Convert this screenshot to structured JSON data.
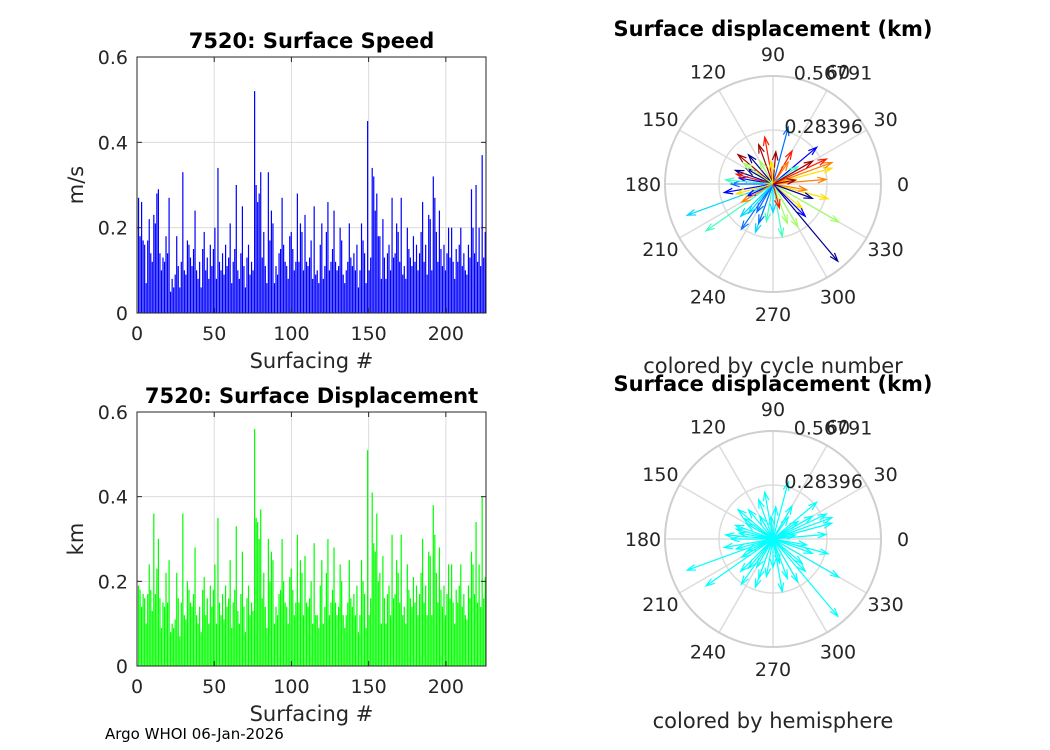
{
  "footer": "Argo WHOI 06-Jan-2026",
  "colors": {
    "speed_bar": "#0000ff",
    "disp_bar": "#00ff00",
    "hemisphere": "#00ffff",
    "grid": "#dcdcdc",
    "axis": "#262626"
  },
  "chart_data": [
    {
      "id": "speed",
      "type": "bar",
      "title": "7520: Surface Speed",
      "xlabel": "Surfacing #",
      "ylabel": "m/s",
      "xlim": [
        0,
        226
      ],
      "ylim": [
        0,
        0.6
      ],
      "xticks": [
        0,
        50,
        100,
        150,
        200
      ],
      "xtick_labels": [
        "0",
        "50",
        "100",
        "150",
        "200"
      ],
      "yticks": [
        0,
        0.2,
        0.4,
        0.6
      ],
      "ytick_labels": [
        "0",
        "0.2",
        "0.4",
        "0.6"
      ],
      "values": [
        0.27,
        0.18,
        0.26,
        0.17,
        0.16,
        0.07,
        0.17,
        0.22,
        0.14,
        0.12,
        0.23,
        0.21,
        0.28,
        0.29,
        0.14,
        0.1,
        0.13,
        0.12,
        0.18,
        0.14,
        0.27,
        0.05,
        0.08,
        0.06,
        0.09,
        0.18,
        0.11,
        0.06,
        0.12,
        0.33,
        0.1,
        0.09,
        0.17,
        0.16,
        0.13,
        0.11,
        0.15,
        0.24,
        0.1,
        0.08,
        0.12,
        0.06,
        0.15,
        0.19,
        0.1,
        0.13,
        0.08,
        0.16,
        0.11,
        0.15,
        0.2,
        0.08,
        0.34,
        0.12,
        0.1,
        0.14,
        0.09,
        0.16,
        0.11,
        0.13,
        0.21,
        0.07,
        0.12,
        0.15,
        0.3,
        0.1,
        0.08,
        0.14,
        0.25,
        0.11,
        0.06,
        0.13,
        0.16,
        0.09,
        0.12,
        0.1,
        0.52,
        0.3,
        0.26,
        0.28,
        0.33,
        0.13,
        0.19,
        0.11,
        0.07,
        0.33,
        0.17,
        0.24,
        0.21,
        0.07,
        0.11,
        0.09,
        0.14,
        0.15,
        0.27,
        0.16,
        0.12,
        0.11,
        0.08,
        0.18,
        0.19,
        0.15,
        0.1,
        0.12,
        0.28,
        0.12,
        0.21,
        0.19,
        0.1,
        0.23,
        0.12,
        0.11,
        0.13,
        0.17,
        0.08,
        0.25,
        0.09,
        0.1,
        0.07,
        0.16,
        0.21,
        0.08,
        0.11,
        0.19,
        0.26,
        0.1,
        0.12,
        0.15,
        0.24,
        0.12,
        0.1,
        0.11,
        0.2,
        0.17,
        0.09,
        0.07,
        0.1,
        0.12,
        0.21,
        0.13,
        0.11,
        0.14,
        0.1,
        0.16,
        0.06,
        0.1,
        0.21,
        0.17,
        0.14,
        0.07,
        0.45,
        0.1,
        0.13,
        0.34,
        0.32,
        0.24,
        0.28,
        0.18,
        0.18,
        0.08,
        0.22,
        0.13,
        0.08,
        0.14,
        0.16,
        0.1,
        0.27,
        0.13,
        0.14,
        0.21,
        0.19,
        0.12,
        0.27,
        0.09,
        0.11,
        0.08,
        0.2,
        0.15,
        0.13,
        0.11,
        0.18,
        0.12,
        0.16,
        0.1,
        0.14,
        0.19,
        0.26,
        0.12,
        0.16,
        0.09,
        0.23,
        0.22,
        0.1,
        0.32,
        0.27,
        0.19,
        0.12,
        0.24,
        0.15,
        0.11,
        0.16,
        0.1,
        0.14,
        0.2,
        0.13,
        0.2,
        0.12,
        0.08,
        0.15,
        0.12,
        0.16,
        0.2,
        0.11,
        0.14,
        0.1,
        0.09,
        0.16,
        0.13,
        0.29,
        0.2,
        0.14,
        0.3,
        0.12,
        0.2,
        0.11,
        0.37,
        0.13,
        0.19
      ]
    },
    {
      "id": "displacement",
      "type": "bar",
      "title": "7520: Surface Displacement",
      "xlabel": "Surfacing #",
      "ylabel": "km",
      "xlim": [
        0,
        226
      ],
      "ylim": [
        0,
        0.6
      ],
      "xticks": [
        0,
        50,
        100,
        150,
        200
      ],
      "xtick_labels": [
        "0",
        "50",
        "100",
        "150",
        "200"
      ],
      "yticks": [
        0,
        0.2,
        0.4,
        0.6
      ],
      "ytick_labels": [
        "0",
        "0.2",
        "0.4",
        "0.6"
      ],
      "values": [
        0.19,
        0.18,
        0.14,
        0.17,
        0.16,
        0.1,
        0.17,
        0.24,
        0.18,
        0.13,
        0.36,
        0.17,
        0.23,
        0.3,
        0.16,
        0.09,
        0.15,
        0.14,
        0.22,
        0.15,
        0.25,
        0.08,
        0.1,
        0.09,
        0.11,
        0.22,
        0.16,
        0.07,
        0.15,
        0.36,
        0.12,
        0.11,
        0.2,
        0.18,
        0.15,
        0.14,
        0.17,
        0.28,
        0.12,
        0.1,
        0.14,
        0.08,
        0.18,
        0.21,
        0.12,
        0.16,
        0.1,
        0.19,
        0.14,
        0.18,
        0.24,
        0.1,
        0.35,
        0.15,
        0.12,
        0.17,
        0.11,
        0.19,
        0.14,
        0.16,
        0.25,
        0.09,
        0.15,
        0.18,
        0.33,
        0.13,
        0.1,
        0.17,
        0.27,
        0.14,
        0.08,
        0.16,
        0.19,
        0.12,
        0.15,
        0.13,
        0.56,
        0.35,
        0.34,
        0.3,
        0.37,
        0.16,
        0.22,
        0.14,
        0.09,
        0.3,
        0.2,
        0.27,
        0.25,
        0.1,
        0.14,
        0.12,
        0.17,
        0.18,
        0.3,
        0.2,
        0.15,
        0.14,
        0.1,
        0.21,
        0.23,
        0.18,
        0.12,
        0.15,
        0.31,
        0.15,
        0.25,
        0.22,
        0.12,
        0.26,
        0.15,
        0.14,
        0.16,
        0.2,
        0.1,
        0.29,
        0.12,
        0.12,
        0.09,
        0.19,
        0.25,
        0.1,
        0.14,
        0.22,
        0.3,
        0.12,
        0.15,
        0.18,
        0.28,
        0.15,
        0.12,
        0.14,
        0.24,
        0.2,
        0.12,
        0.09,
        0.12,
        0.15,
        0.25,
        0.16,
        0.14,
        0.17,
        0.12,
        0.19,
        0.08,
        0.12,
        0.25,
        0.2,
        0.17,
        0.09,
        0.51,
        0.12,
        0.16,
        0.41,
        0.29,
        0.27,
        0.36,
        0.2,
        0.22,
        0.1,
        0.26,
        0.16,
        0.1,
        0.17,
        0.19,
        0.12,
        0.31,
        0.16,
        0.17,
        0.25,
        0.22,
        0.15,
        0.31,
        0.12,
        0.14,
        0.1,
        0.24,
        0.18,
        0.16,
        0.14,
        0.21,
        0.15,
        0.19,
        0.12,
        0.17,
        0.22,
        0.3,
        0.15,
        0.19,
        0.12,
        0.27,
        0.26,
        0.12,
        0.38,
        0.31,
        0.22,
        0.15,
        0.28,
        0.18,
        0.14,
        0.19,
        0.12,
        0.17,
        0.24,
        0.16,
        0.24,
        0.15,
        0.1,
        0.18,
        0.15,
        0.19,
        0.24,
        0.14,
        0.17,
        0.12,
        0.11,
        0.19,
        0.16,
        0.27,
        0.24,
        0.17,
        0.34,
        0.15,
        0.24,
        0.14,
        0.4,
        0.16,
        0.21
      ]
    },
    {
      "id": "polar-cycle",
      "type": "compass",
      "title": "Surface displacement (km)",
      "xlabel": "colored by cycle number",
      "r_max": 0.56791,
      "r_ticks": [
        0.28396,
        0.56791
      ],
      "r_tick_labels": [
        "0.28396",
        "0.56791"
      ],
      "angle_ticks": [
        0,
        30,
        60,
        90,
        120,
        150,
        180,
        210,
        240,
        270,
        300,
        330
      ],
      "angle_labels": [
        "0",
        "30",
        "60",
        "90",
        "120",
        "150",
        "180",
        "210",
        "240",
        "270",
        "300",
        "330"
      ],
      "color_mode": "cycle",
      "vectors": [
        {
          "angle": 310,
          "r": 0.53
        },
        {
          "angle": 40,
          "r": 0.3
        },
        {
          "angle": 75,
          "r": 0.31
        },
        {
          "angle": 200,
          "r": 0.48
        },
        {
          "angle": 215,
          "r": 0.43
        },
        {
          "angle": 330,
          "r": 0.4
        },
        {
          "angle": 15,
          "r": 0.32
        },
        {
          "angle": 20,
          "r": 0.33
        },
        {
          "angle": 25,
          "r": 0.31
        },
        {
          "angle": 140,
          "r": 0.24
        },
        {
          "angle": 160,
          "r": 0.21
        },
        {
          "angle": 190,
          "r": 0.26
        },
        {
          "angle": 235,
          "r": 0.29
        },
        {
          "angle": 250,
          "r": 0.27
        },
        {
          "angle": 280,
          "r": 0.28
        },
        {
          "angle": 300,
          "r": 0.26
        },
        {
          "angle": 345,
          "r": 0.3
        },
        {
          "angle": 5,
          "r": 0.28
        },
        {
          "angle": 100,
          "r": 0.25
        },
        {
          "angle": 110,
          "r": 0.22
        },
        {
          "angle": 130,
          "r": 0.2
        },
        {
          "angle": 170,
          "r": 0.18
        },
        {
          "angle": 180,
          "r": 0.22
        },
        {
          "angle": 225,
          "r": 0.24
        },
        {
          "angle": 260,
          "r": 0.2
        },
        {
          "angle": 290,
          "r": 0.22
        },
        {
          "angle": 320,
          "r": 0.2
        },
        {
          "angle": 350,
          "r": 0.18
        },
        {
          "angle": 60,
          "r": 0.2
        },
        {
          "angle": 85,
          "r": 0.17
        },
        {
          "angle": 150,
          "r": 0.16
        },
        {
          "angle": 205,
          "r": 0.15
        },
        {
          "angle": 240,
          "r": 0.17
        },
        {
          "angle": 270,
          "r": 0.15
        },
        {
          "angle": 35,
          "r": 0.16
        },
        {
          "angle": 120,
          "r": 0.14
        },
        {
          "angle": 195,
          "r": 0.2
        },
        {
          "angle": 210,
          "r": 0.19
        },
        {
          "angle": 165,
          "r": 0.2
        },
        {
          "angle": 30,
          "r": 0.24
        },
        {
          "angle": 340,
          "r": 0.22
        },
        {
          "angle": 315,
          "r": 0.24
        },
        {
          "angle": 250,
          "r": 0.22
        },
        {
          "angle": 230,
          "r": 0.2
        },
        {
          "angle": 175,
          "r": 0.25
        },
        {
          "angle": 145,
          "r": 0.19
        },
        {
          "angle": 95,
          "r": 0.12
        },
        {
          "angle": 55,
          "r": 0.14
        },
        {
          "angle": 285,
          "r": 0.13
        },
        {
          "angle": 10,
          "r": 0.12
        }
      ]
    },
    {
      "id": "polar-hemisphere",
      "type": "compass",
      "title": "Surface displacement (km)",
      "xlabel": "colored by hemisphere",
      "r_max": 0.56791,
      "r_ticks": [
        0.28396,
        0.56791
      ],
      "r_tick_labels": [
        "0.28396",
        "0.56791"
      ],
      "angle_ticks": [
        0,
        30,
        60,
        90,
        120,
        150,
        180,
        210,
        240,
        270,
        300,
        330
      ],
      "angle_labels": [
        "0",
        "30",
        "60",
        "90",
        "120",
        "150",
        "180",
        "210",
        "240",
        "270",
        "300",
        "330"
      ],
      "color_mode": "hemisphere",
      "vectors": [
        {
          "angle": 310,
          "r": 0.53
        },
        {
          "angle": 40,
          "r": 0.3
        },
        {
          "angle": 75,
          "r": 0.31
        },
        {
          "angle": 200,
          "r": 0.48
        },
        {
          "angle": 215,
          "r": 0.43
        },
        {
          "angle": 330,
          "r": 0.4
        },
        {
          "angle": 15,
          "r": 0.32
        },
        {
          "angle": 20,
          "r": 0.33
        },
        {
          "angle": 25,
          "r": 0.31
        },
        {
          "angle": 140,
          "r": 0.24
        },
        {
          "angle": 160,
          "r": 0.21
        },
        {
          "angle": 190,
          "r": 0.26
        },
        {
          "angle": 235,
          "r": 0.29
        },
        {
          "angle": 250,
          "r": 0.27
        },
        {
          "angle": 280,
          "r": 0.28
        },
        {
          "angle": 300,
          "r": 0.26
        },
        {
          "angle": 345,
          "r": 0.3
        },
        {
          "angle": 5,
          "r": 0.28
        },
        {
          "angle": 100,
          "r": 0.25
        },
        {
          "angle": 110,
          "r": 0.22
        },
        {
          "angle": 130,
          "r": 0.2
        },
        {
          "angle": 170,
          "r": 0.18
        },
        {
          "angle": 180,
          "r": 0.22
        },
        {
          "angle": 225,
          "r": 0.24
        },
        {
          "angle": 260,
          "r": 0.2
        },
        {
          "angle": 290,
          "r": 0.22
        },
        {
          "angle": 320,
          "r": 0.2
        },
        {
          "angle": 350,
          "r": 0.18
        },
        {
          "angle": 60,
          "r": 0.2
        },
        {
          "angle": 85,
          "r": 0.17
        },
        {
          "angle": 150,
          "r": 0.16
        },
        {
          "angle": 205,
          "r": 0.15
        },
        {
          "angle": 240,
          "r": 0.17
        },
        {
          "angle": 270,
          "r": 0.15
        },
        {
          "angle": 35,
          "r": 0.16
        },
        {
          "angle": 120,
          "r": 0.14
        },
        {
          "angle": 195,
          "r": 0.2
        },
        {
          "angle": 210,
          "r": 0.19
        },
        {
          "angle": 165,
          "r": 0.2
        },
        {
          "angle": 30,
          "r": 0.24
        },
        {
          "angle": 340,
          "r": 0.22
        },
        {
          "angle": 315,
          "r": 0.24
        },
        {
          "angle": 250,
          "r": 0.22
        },
        {
          "angle": 230,
          "r": 0.2
        },
        {
          "angle": 175,
          "r": 0.25
        },
        {
          "angle": 145,
          "r": 0.19
        },
        {
          "angle": 95,
          "r": 0.12
        },
        {
          "angle": 55,
          "r": 0.14
        },
        {
          "angle": 285,
          "r": 0.13
        },
        {
          "angle": 10,
          "r": 0.12
        }
      ]
    }
  ]
}
